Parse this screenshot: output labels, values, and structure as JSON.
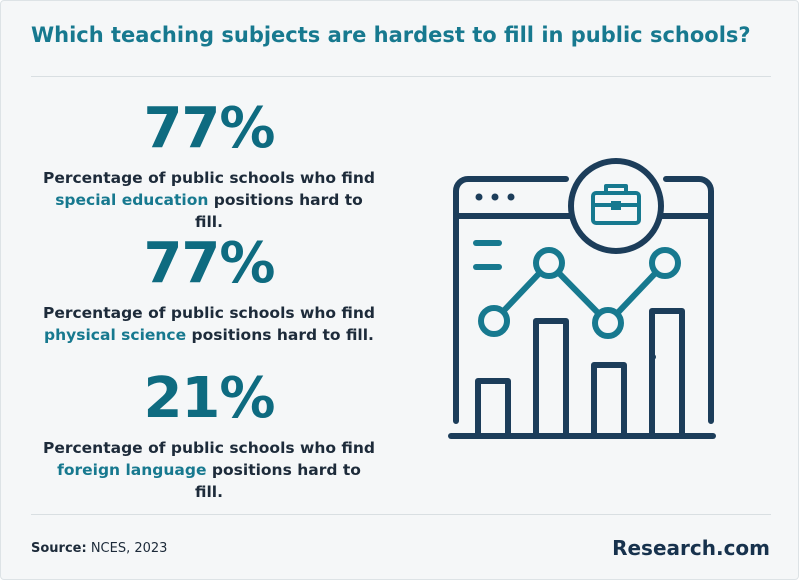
{
  "header": {
    "title": "Which teaching subjects are hardest to fill in public schools?"
  },
  "stats": [
    {
      "value": "77%",
      "text_before": "Percentage of public schools who find",
      "highlight": "special education",
      "text_after": "positions hard to fill."
    },
    {
      "value": "77%",
      "text_before": "Percentage of public schools who find",
      "highlight": "physical science",
      "text_after": "positions hard to fill."
    },
    {
      "value": "21%",
      "text_before": "Percentage of public schools who find",
      "highlight": "foreign language",
      "text_after": "positions hard to fill."
    }
  ],
  "footer": {
    "source_label": "Source:",
    "source": "NCES, 2023",
    "brand": "Research.com"
  }
}
